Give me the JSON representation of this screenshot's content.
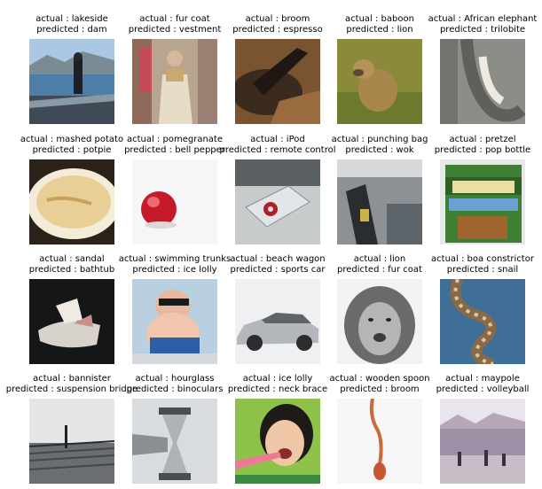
{
  "grid": [
    {
      "actual_label": "actual : lakeside",
      "predicted_label": "predicted : dam",
      "image": "lakeside-photo"
    },
    {
      "actual_label": "actual : fur coat",
      "predicted_label": "predicted : vestment",
      "image": "fur-coat-photo"
    },
    {
      "actual_label": "actual : broom",
      "predicted_label": "predicted : espresso",
      "image": "broom-photo"
    },
    {
      "actual_label": "actual : baboon",
      "predicted_label": "predicted : lion",
      "image": "baboon-photo"
    },
    {
      "actual_label": "actual : African elephant",
      "predicted_label": "predicted : trilobite",
      "image": "elephant-photo"
    },
    {
      "actual_label": "actual : mashed potato",
      "predicted_label": "predicted : potpie",
      "image": "mashed-potato-photo"
    },
    {
      "actual_label": "actual : pomegranate",
      "predicted_label": "predicted : bell pepper",
      "image": "pomegranate-photo"
    },
    {
      "actual_label": "actual : iPod",
      "predicted_label": "predicted : remote control",
      "image": "ipod-photo"
    },
    {
      "actual_label": "actual : punching bag",
      "predicted_label": "predicted : wok",
      "image": "punching-bag-photo"
    },
    {
      "actual_label": "actual : pretzel",
      "predicted_label": "predicted : pop bottle",
      "image": "pretzel-bag-photo"
    },
    {
      "actual_label": "actual : sandal",
      "predicted_label": "predicted : bathtub",
      "image": "sandal-photo"
    },
    {
      "actual_label": "actual : swimming trunks",
      "predicted_label": "predicted : ice lolly",
      "image": "baby-photo"
    },
    {
      "actual_label": "actual : beach wagon",
      "predicted_label": "predicted : sports car",
      "image": "car-photo"
    },
    {
      "actual_label": "actual : lion",
      "predicted_label": "predicted : fur coat",
      "image": "lion-photo"
    },
    {
      "actual_label": "actual : boa constrictor",
      "predicted_label": "predicted : snail",
      "image": "snake-photo"
    },
    {
      "actual_label": "actual : bannister",
      "predicted_label": "predicted : suspension bridge",
      "image": "bannister-photo"
    },
    {
      "actual_label": "actual : hourglass",
      "predicted_label": "predicted : binoculars",
      "image": "hourglass-photo"
    },
    {
      "actual_label": "actual : ice lolly",
      "predicted_label": "predicted : neck brace",
      "image": "girl-ice-lolly-photo"
    },
    {
      "actual_label": "actual : wooden spoon",
      "predicted_label": "predicted : broom",
      "image": "wooden-spoon-photo"
    },
    {
      "actual_label": "actual : maypole",
      "predicted_label": "predicted : volleyball",
      "image": "maypole-photo"
    }
  ]
}
